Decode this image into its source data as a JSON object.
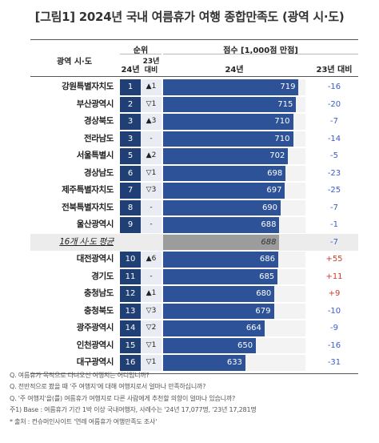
{
  "title": "[그림1] 2024년 국내 여름휴가 여행 종합만족도 (광역 시·도)",
  "headers": {
    "region": "광역 시·도",
    "rank_group": "순위",
    "rank_24": "24년",
    "rank_change_l1": "23년",
    "rank_change_l2": "대비",
    "score_group": "점수 [1,000점 만점]",
    "score_24": "24년",
    "score_vs": "23년 대비"
  },
  "colors": {
    "rank_bg": "#1f3f75",
    "bar": "#2d5297",
    "avg_bar": "#9c9c9c",
    "negative": "#3a5cc8",
    "positive": "#d23a2a"
  },
  "chart_data": {
    "type": "bar",
    "orientation": "horizontal",
    "title": "[그림1] 2024년 국내 여름휴가 여행 종합만족도 (광역 시·도)",
    "categories": [
      "강원특별자치도",
      "부산광역시",
      "경상북도",
      "전라남도",
      "서울특별시",
      "경상남도",
      "제주특별자치도",
      "전북특별자치도",
      "울산광역시",
      "16개 시·도 평균",
      "대전광역시",
      "경기도",
      "충청남도",
      "충청북도",
      "광주광역시",
      "인천광역시",
      "대구광역시"
    ],
    "rows": [
      {
        "region": "강원특별자치도",
        "rank": "1",
        "change": "▲1",
        "score": 719,
        "score_label": "719",
        "vs": "-16"
      },
      {
        "region": "부산광역시",
        "rank": "2",
        "change": "▽1",
        "score": 715,
        "score_label": "715",
        "vs": "-20"
      },
      {
        "region": "경상북도",
        "rank": "3",
        "change": "▲3",
        "score": 710,
        "score_label": "710",
        "vs": "-7"
      },
      {
        "region": "전라남도",
        "rank": "3",
        "change": "-",
        "score": 710,
        "score_label": "710",
        "vs": "-14"
      },
      {
        "region": "서울특별시",
        "rank": "5",
        "change": "▲2",
        "score": 702,
        "score_label": "702",
        "vs": "-5"
      },
      {
        "region": "경상남도",
        "rank": "6",
        "change": "▽1",
        "score": 698,
        "score_label": "698",
        "vs": "-23"
      },
      {
        "region": "제주특별자치도",
        "rank": "7",
        "change": "▽3",
        "score": 697,
        "score_label": "697",
        "vs": "-25"
      },
      {
        "region": "전북특별자치도",
        "rank": "8",
        "change": "-",
        "score": 690,
        "score_label": "690",
        "vs": "-7"
      },
      {
        "region": "울산광역시",
        "rank": "9",
        "change": "-",
        "score": 688,
        "score_label": "688",
        "vs": "-1"
      },
      {
        "region": "16개 시·도 평균",
        "rank": "",
        "change": "",
        "score": 688,
        "score_label": "688",
        "vs": "-7",
        "average": true
      },
      {
        "region": "대전광역시",
        "rank": "10",
        "change": "▲6",
        "score": 686,
        "score_label": "686",
        "vs": "+55"
      },
      {
        "region": "경기도",
        "rank": "11",
        "change": "-",
        "score": 685,
        "score_label": "685",
        "vs": "+11"
      },
      {
        "region": "충청남도",
        "rank": "12",
        "change": "▲1",
        "score": 680,
        "score_label": "680",
        "vs": "+9"
      },
      {
        "region": "충청북도",
        "rank": "13",
        "change": "▽3",
        "score": 679,
        "score_label": "679",
        "vs": "-10"
      },
      {
        "region": "광주광역시",
        "rank": "14",
        "change": "▽2",
        "score": 664,
        "score_label": "664",
        "vs": "-9"
      },
      {
        "region": "인천광역시",
        "rank": "15",
        "change": "▽1",
        "score": 650,
        "score_label": "650",
        "vs": "-16"
      },
      {
        "region": "대구광역시",
        "rank": "16",
        "change": "▽1",
        "score": 633,
        "score_label": "633",
        "vs": "-31"
      }
    ],
    "xlim": [
      500,
      730
    ]
  },
  "notes": [
    "Q. 여름휴가 목적으로 다녀오신 여행지는 어디입니까?",
    "Q. 전반적으로 봤을 때 '주 여행지'에 대해 여행지로서 얼마나 만족하십니까?",
    "Q. '주 여행지'을(를) 여름휴가 여행지로 다른 사람에게 추천할 의향이 얼마나 있습니까?",
    "주1) Base : 여름휴가 기간 1박 이상 국내여행자, 사례수는 '24년 17,077명, '23년 17,281명",
    "* 출처 : 컨슈머인사이트 '연례 여름휴가 여행만족도 조사'"
  ]
}
